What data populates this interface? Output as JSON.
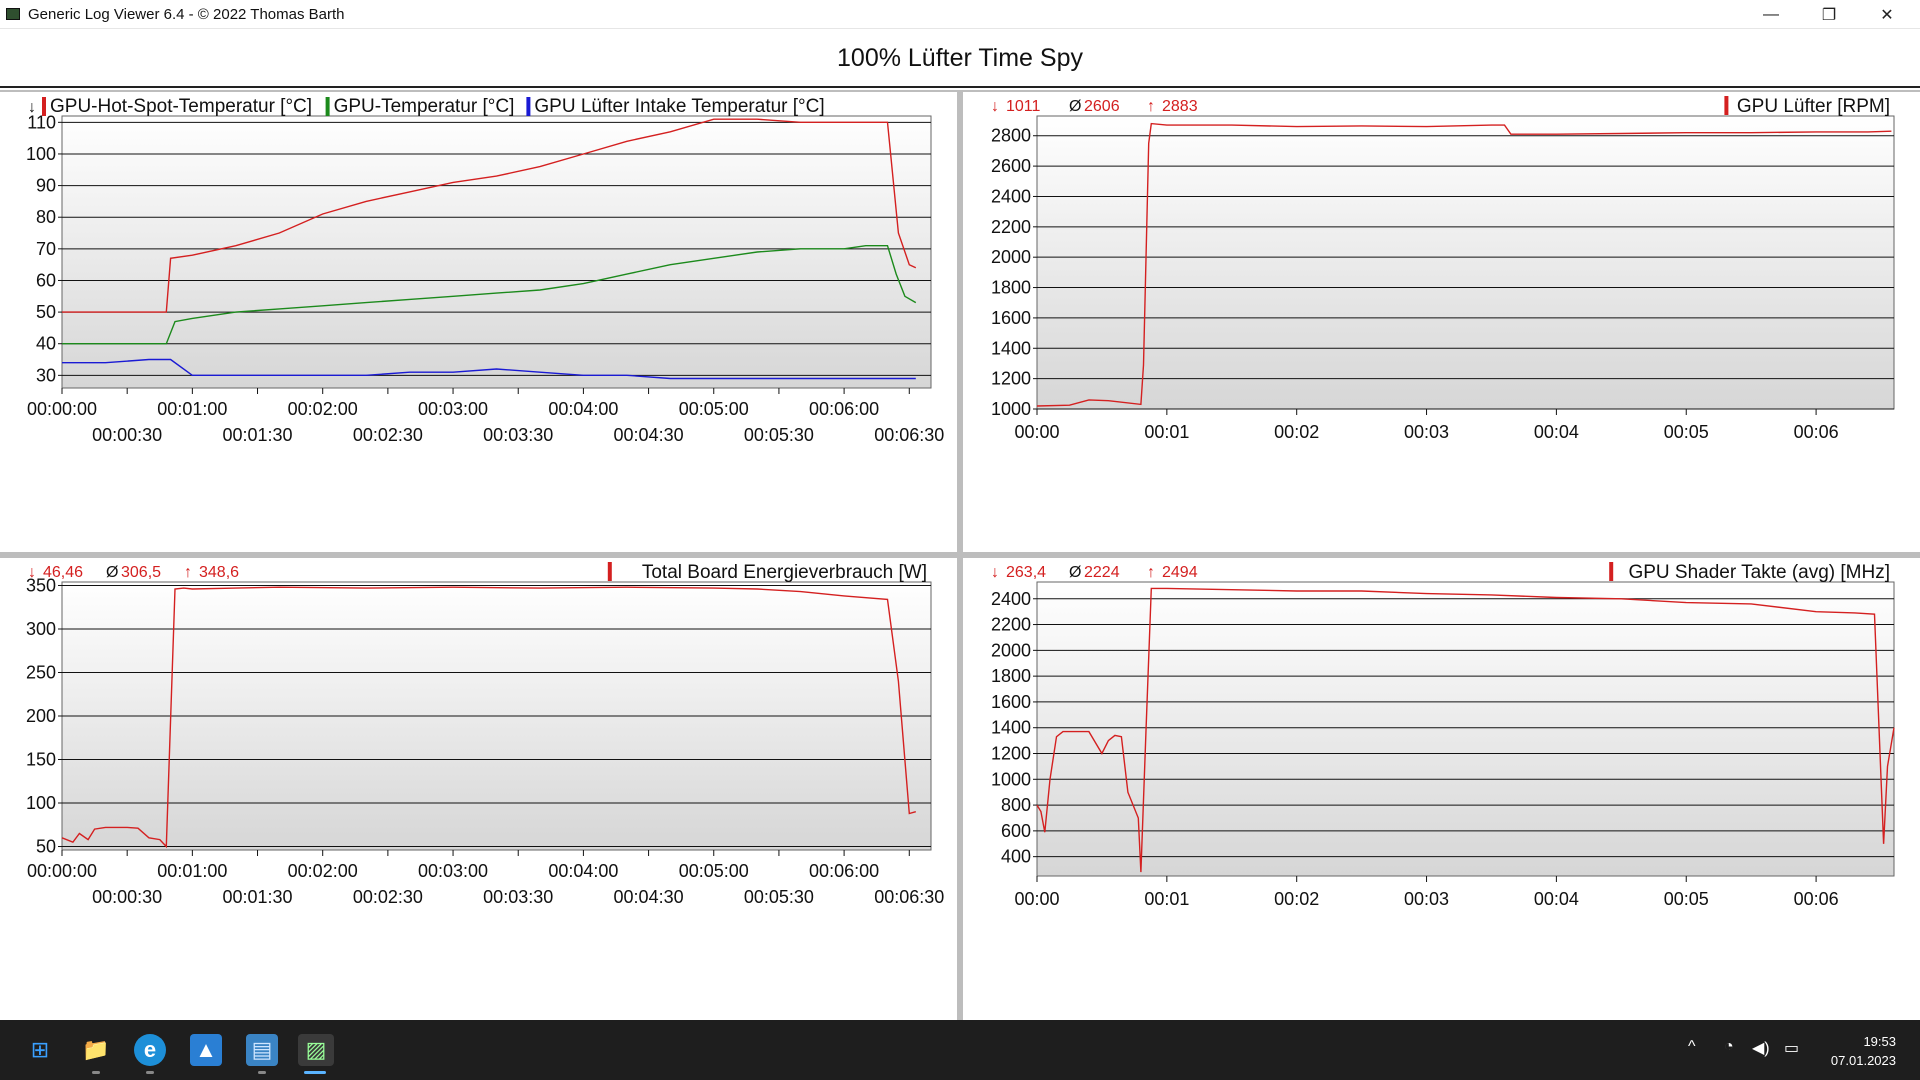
{
  "window": {
    "title": "Generic Log Viewer 6.4 - © 2022 Thomas Barth",
    "minimize": "—",
    "restore": "❐",
    "close": "✕"
  },
  "main_title": "100% Lüfter Time Spy",
  "chart_data": [
    {
      "type": "line",
      "panel": "temperatures",
      "legend": [
        "GPU-Hot-Spot-Temperatur [°C]",
        "GPU-Temperatur [°C]",
        "GPU Lüfter Intake Temperatur [°C]"
      ],
      "legend_marker": "↓",
      "x_ticks_upper": [
        "00:00:00",
        "00:01:00",
        "00:02:00",
        "00:03:00",
        "00:04:00",
        "00:05:00",
        "00:06:00"
      ],
      "x_ticks_lower": [
        "00:00:30",
        "00:01:30",
        "00:02:30",
        "00:03:30",
        "00:04:30",
        "00:05:30",
        "00:06:30"
      ],
      "xlim": [
        0,
        400
      ],
      "ylim": [
        26,
        112
      ],
      "y_ticks": [
        30,
        40,
        50,
        60,
        70,
        80,
        90,
        100,
        110
      ],
      "series": [
        {
          "name": "GPU-Hot-Spot-Temperatur [°C]",
          "color": "#d42020",
          "x": [
            0,
            20,
            48,
            50,
            60,
            80,
            100,
            120,
            140,
            160,
            180,
            200,
            220,
            240,
            260,
            280,
            300,
            320,
            340,
            370,
            380,
            385,
            390,
            393
          ],
          "y": [
            50,
            50,
            50,
            67,
            68,
            71,
            75,
            81,
            85,
            88,
            91,
            93,
            96,
            100,
            104,
            107,
            111,
            111,
            110,
            110,
            110,
            75,
            65,
            64
          ]
        },
        {
          "name": "GPU-Temperatur [°C]",
          "color": "#1c8a1c",
          "x": [
            0,
            20,
            48,
            52,
            60,
            80,
            100,
            120,
            140,
            160,
            180,
            200,
            220,
            240,
            260,
            280,
            300,
            320,
            340,
            360,
            370,
            375,
            380,
            384,
            388,
            393
          ],
          "y": [
            40,
            40,
            40,
            47,
            48,
            50,
            51,
            52,
            53,
            54,
            55,
            56,
            57,
            59,
            62,
            65,
            67,
            69,
            70,
            70,
            71,
            71,
            71,
            62,
            55,
            53
          ]
        },
        {
          "name": "GPU Lüfter Intake Temperatur [°C]",
          "color": "#1a1ad4",
          "x": [
            0,
            20,
            40,
            50,
            60,
            80,
            100,
            120,
            140,
            160,
            180,
            200,
            220,
            240,
            260,
            280,
            300,
            320,
            340,
            360,
            380,
            393
          ],
          "y": [
            34,
            34,
            35,
            35,
            30,
            30,
            30,
            30,
            30,
            31,
            31,
            32,
            31,
            30,
            30,
            29,
            29,
            29,
            29,
            29,
            29,
            29
          ]
        }
      ]
    },
    {
      "type": "line",
      "panel": "fan",
      "stats": {
        "min": "1011",
        "avg": "2606",
        "max": "2883"
      },
      "stat_symbols": {
        "min": "↓",
        "avg": "Ø",
        "max": "↑"
      },
      "legend": [
        "GPU Lüfter [RPM]"
      ],
      "x_ticks": [
        "00:00",
        "00:01",
        "00:02",
        "00:03",
        "00:04",
        "00:05",
        "00:06"
      ],
      "xlim": [
        0,
        6.6
      ],
      "ylim": [
        1000,
        2930
      ],
      "y_ticks": [
        1000,
        1200,
        1400,
        1600,
        1800,
        2000,
        2200,
        2400,
        2600,
        2800
      ],
      "series": [
        {
          "name": "GPU Lüfter [RPM]",
          "color": "#d42020",
          "x": [
            0,
            0.25,
            0.4,
            0.55,
            0.8,
            0.82,
            0.86,
            0.88,
            1.0,
            1.5,
            2.0,
            2.5,
            3.0,
            3.5,
            3.6,
            3.65,
            4.0,
            4.5,
            5.0,
            5.5,
            6.0,
            6.4,
            6.58
          ],
          "y": [
            1020,
            1025,
            1060,
            1055,
            1030,
            1290,
            2750,
            2880,
            2870,
            2870,
            2860,
            2865,
            2860,
            2870,
            2870,
            2810,
            2810,
            2815,
            2820,
            2820,
            2825,
            2825,
            2830
          ]
        }
      ]
    },
    {
      "type": "line",
      "panel": "power",
      "stats": {
        "min": "46,46",
        "avg": "306,5",
        "max": "348,6"
      },
      "stat_symbols": {
        "min": "↓",
        "avg": "Ø",
        "max": "↑"
      },
      "legend": [
        "Total Board Energieverbrauch [W]"
      ],
      "x_ticks_upper": [
        "00:00:00",
        "00:01:00",
        "00:02:00",
        "00:03:00",
        "00:04:00",
        "00:05:00",
        "00:06:00"
      ],
      "x_ticks_lower": [
        "00:00:30",
        "00:01:30",
        "00:02:30",
        "00:03:30",
        "00:04:30",
        "00:05:30",
        "00:06:30"
      ],
      "xlim": [
        0,
        400
      ],
      "ylim": [
        46,
        354
      ],
      "y_ticks": [
        50,
        100,
        150,
        200,
        250,
        300,
        350
      ],
      "series": [
        {
          "name": "Total Board Energieverbrauch [W]",
          "color": "#d42020",
          "x": [
            0,
            5,
            8,
            12,
            15,
            20,
            30,
            35,
            40,
            45,
            48,
            52,
            56,
            60,
            80,
            100,
            140,
            180,
            220,
            260,
            300,
            320,
            340,
            360,
            380,
            385,
            390,
            393
          ],
          "y": [
            60,
            55,
            65,
            58,
            70,
            72,
            72,
            71,
            60,
            58,
            50,
            346,
            347,
            346,
            347,
            348,
            347,
            348,
            347,
            348,
            347,
            346,
            343,
            338,
            334,
            240,
            88,
            90
          ]
        }
      ]
    },
    {
      "type": "line",
      "panel": "clock",
      "stats": {
        "min": "263,4",
        "avg": "2224",
        "max": "2494"
      },
      "stat_symbols": {
        "min": "↓",
        "avg": "Ø",
        "max": "↑"
      },
      "legend": [
        "GPU Shader Takte (avg) [MHz]"
      ],
      "x_ticks": [
        "00:00",
        "00:01",
        "00:02",
        "00:03",
        "00:04",
        "00:05",
        "00:06"
      ],
      "xlim": [
        0,
        6.6
      ],
      "ylim": [
        250,
        2530
      ],
      "y_ticks": [
        400,
        600,
        800,
        1000,
        1200,
        1400,
        1600,
        1800,
        2000,
        2200,
        2400
      ],
      "series": [
        {
          "name": "GPU Shader Takte (avg) [MHz]",
          "color": "#d42020",
          "x": [
            0,
            0.03,
            0.06,
            0.1,
            0.15,
            0.2,
            0.4,
            0.5,
            0.55,
            0.6,
            0.65,
            0.7,
            0.78,
            0.8,
            0.84,
            0.88,
            1.0,
            1.5,
            2.0,
            2.5,
            3.0,
            3.5,
            4.0,
            4.5,
            5.0,
            5.5,
            6.0,
            6.3,
            6.45,
            6.52,
            6.55,
            6.6
          ],
          "y": [
            800,
            750,
            590,
            1000,
            1330,
            1370,
            1370,
            1200,
            1300,
            1340,
            1330,
            900,
            700,
            280,
            1400,
            2480,
            2480,
            2470,
            2460,
            2460,
            2440,
            2430,
            2410,
            2400,
            2370,
            2360,
            2300,
            2290,
            2280,
            500,
            1100,
            1400
          ]
        }
      ]
    }
  ],
  "taskbar": {
    "start_icon": "⊞",
    "explorer_icon": "📁",
    "edge_icon": "e",
    "photos_icon": "▲",
    "notepad_icon": "▤",
    "logviewer_icon": "▨",
    "tray_up": "^",
    "wifi_icon": "◔",
    "volume_icon": "◀)",
    "battery_icon": "▭",
    "time": "19:53",
    "date": "07.01.2023"
  },
  "colors": {
    "red": "#d42020",
    "green": "#1c8a1c",
    "blue": "#1a1ad4"
  }
}
